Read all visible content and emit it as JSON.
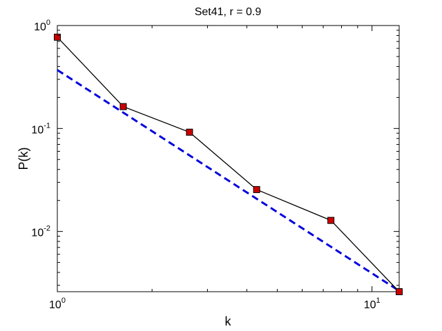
{
  "chart_data": {
    "type": "line",
    "title": "Set41, r = 0.9",
    "xlabel": "k",
    "ylabel": "P(k)",
    "xscale": "log",
    "yscale": "log",
    "xlim": [
      1,
      12.2
    ],
    "ylim": [
      0.0026,
      1
    ],
    "x_ticks": [
      {
        "value": 1,
        "base": "10",
        "exp": "0"
      },
      {
        "value": 10,
        "base": "10",
        "exp": "1"
      }
    ],
    "y_ticks": [
      {
        "value": 0.01,
        "base": "10",
        "exp": "-2"
      },
      {
        "value": 0.1,
        "base": "10",
        "exp": "-1"
      },
      {
        "value": 1,
        "base": "10",
        "exp": "0"
      }
    ],
    "grid": false,
    "series": [
      {
        "style": "solid-line-square-markers",
        "line_color": "#000000",
        "marker_color": "#cc0000",
        "x": [
          1.0,
          1.62,
          2.63,
          4.3,
          7.4,
          12.2
        ],
        "y": [
          0.77,
          0.163,
          0.092,
          0.0255,
          0.0128,
          0.0026
        ]
      },
      {
        "style": "dashed-fit",
        "line_color": "#0000dd",
        "x": [
          1.0,
          12.2
        ],
        "y": [
          0.37,
          0.00265
        ]
      }
    ]
  }
}
